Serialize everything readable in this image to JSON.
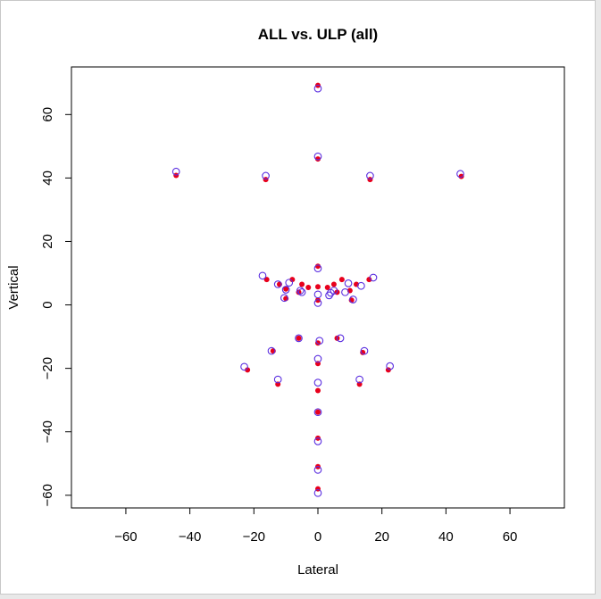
{
  "colors": {
    "page_bg": "#ffffff",
    "frame_border": "#c8c8c8",
    "series_all": "#e8001c",
    "series_ulp": "#5a2ee0",
    "axis": "#000000"
  },
  "chart_data": {
    "type": "scatter",
    "title": "ALL vs. ULP (all)",
    "xlabel": "Lateral",
    "ylabel": "Vertical",
    "xlim": [
      -77,
      77
    ],
    "ylim": [
      -64,
      75
    ],
    "xticks": [
      -60,
      -40,
      -20,
      0,
      20,
      40,
      60
    ],
    "yticks": [
      -60,
      -40,
      -20,
      0,
      20,
      40,
      60
    ],
    "xtick_labels": [
      "−60",
      "−40",
      "−20",
      "0",
      "20",
      "40",
      "60"
    ],
    "ytick_labels": [
      "−60",
      "−40",
      "−20",
      "0",
      "20",
      "40",
      "60"
    ],
    "grid": false,
    "legend": "none",
    "series": [
      {
        "marker": "filled-dot",
        "color": "#e8001c",
        "points": [
          [
            0,
            69.2
          ],
          [
            0,
            46.0
          ],
          [
            -44.3,
            40.8
          ],
          [
            -16.3,
            39.5
          ],
          [
            16.3,
            39.5
          ],
          [
            44.8,
            40.5
          ],
          [
            0,
            12.2
          ],
          [
            -16.0,
            8.0
          ],
          [
            16.0,
            8.0
          ],
          [
            -12.0,
            6.5
          ],
          [
            12.0,
            6.5
          ],
          [
            -8.0,
            8.0
          ],
          [
            7.5,
            8.0
          ],
          [
            -5.0,
            6.5
          ],
          [
            5.0,
            6.5
          ],
          [
            -3.0,
            5.5
          ],
          [
            0,
            5.7
          ],
          [
            3.0,
            5.5
          ],
          [
            -10.0,
            5.0
          ],
          [
            10.0,
            4.5
          ],
          [
            -6.0,
            4.0
          ],
          [
            6.0,
            4.0
          ],
          [
            0,
            1.5
          ],
          [
            -10.0,
            2.0
          ],
          [
            10.5,
            1.5
          ],
          [
            -6.0,
            -10.5
          ],
          [
            6.0,
            -10.5
          ],
          [
            0,
            -12.0
          ],
          [
            -14.0,
            -14.5
          ],
          [
            14.0,
            -15.0
          ],
          [
            0,
            -18.5
          ],
          [
            -22.0,
            -20.5
          ],
          [
            22.0,
            -20.5
          ],
          [
            -12.5,
            -25.0
          ],
          [
            13.0,
            -25.0
          ],
          [
            0,
            -27.0
          ],
          [
            0,
            -33.8
          ],
          [
            0,
            -42.0
          ],
          [
            0,
            -51.0
          ],
          [
            0,
            -58.0
          ]
        ]
      },
      {
        "marker": "hollow-circle",
        "color": "#5a2ee0",
        "points": [
          [
            0,
            68.2
          ],
          [
            0,
            46.8
          ],
          [
            -44.3,
            42.0
          ],
          [
            -16.3,
            40.7
          ],
          [
            16.3,
            40.7
          ],
          [
            44.5,
            41.3
          ],
          [
            0,
            11.5
          ],
          [
            -17.3,
            9.2
          ],
          [
            17.3,
            8.6
          ],
          [
            -12.5,
            6.5
          ],
          [
            13.5,
            6.0
          ],
          [
            -9.0,
            7.0
          ],
          [
            9.5,
            6.8
          ],
          [
            -5.5,
            4.5
          ],
          [
            5.0,
            4.5
          ],
          [
            -5.0,
            4.0
          ],
          [
            4.0,
            3.8
          ],
          [
            3.5,
            3.0
          ],
          [
            -10.0,
            4.8
          ],
          [
            8.5,
            4.0
          ],
          [
            0,
            3.3
          ],
          [
            0,
            0.6
          ],
          [
            -10.5,
            2.2
          ],
          [
            11.0,
            1.7
          ],
          [
            -6.0,
            -10.5
          ],
          [
            7.0,
            -10.5
          ],
          [
            0.5,
            -11.3
          ],
          [
            -14.5,
            -14.5
          ],
          [
            14.5,
            -14.5
          ],
          [
            0,
            -17.0
          ],
          [
            -23.0,
            -19.5
          ],
          [
            22.5,
            -19.3
          ],
          [
            -12.5,
            -23.5
          ],
          [
            13.0,
            -23.5
          ],
          [
            0,
            -24.5
          ],
          [
            0,
            -33.8
          ],
          [
            0,
            -43.0
          ],
          [
            0,
            -52.0
          ],
          [
            0,
            -59.3
          ]
        ]
      }
    ]
  }
}
